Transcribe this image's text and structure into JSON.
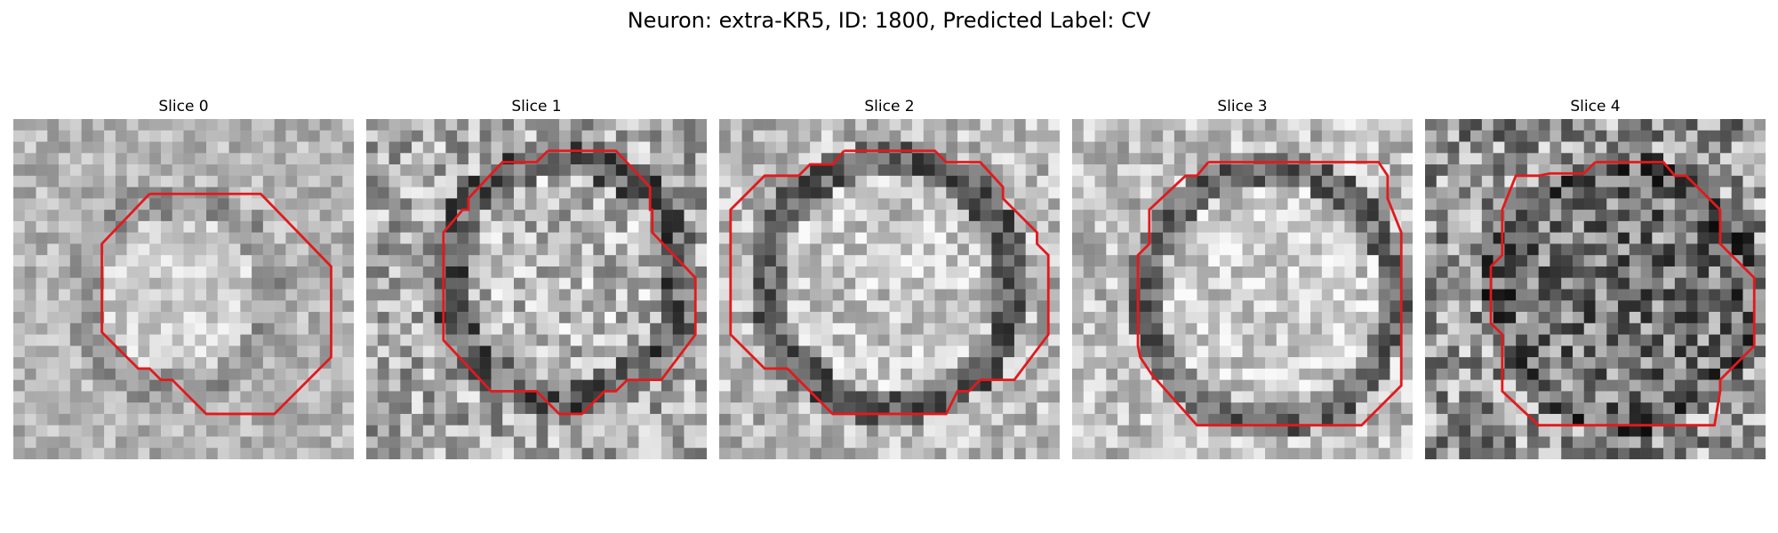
{
  "title": "Neuron: extra-KR5, ID: 1800, Predicted Label: CV",
  "contour_color": "#e3191c",
  "panels": [
    {
      "label": "Slice 0"
    },
    {
      "label": "Slice 1"
    },
    {
      "label": "Slice 2"
    },
    {
      "label": "Slice 3"
    },
    {
      "label": "Slice 4"
    }
  ]
}
